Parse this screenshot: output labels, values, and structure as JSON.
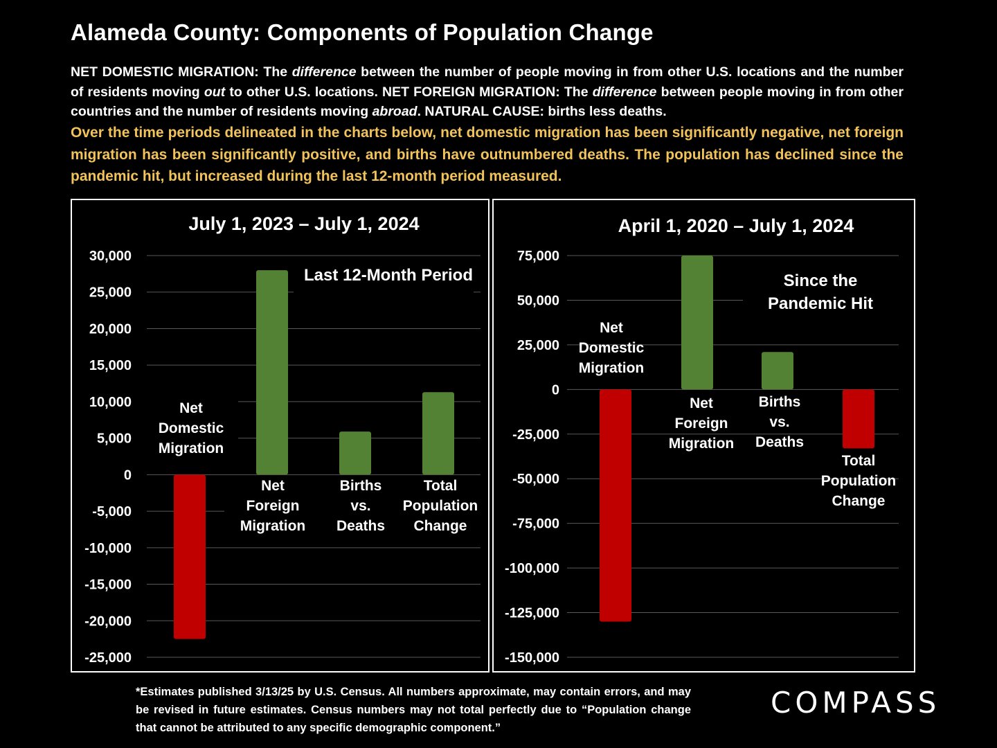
{
  "title": "Alameda County:  Components of Population Change",
  "definitions": [
    {
      "t": "NET DOMESTIC MIGRATION:  The ",
      "i": false
    },
    {
      "t": "difference",
      "i": true
    },
    {
      "t": " between the number of people moving in from other U.S. locations and the number of residents moving ",
      "i": false
    },
    {
      "t": "out",
      "i": true
    },
    {
      "t": " to other U.S. locations. NET FOREIGN MIGRATION:  The ",
      "i": false
    },
    {
      "t": "difference",
      "i": true
    },
    {
      "t": " between people moving in from other countries and the number of residents moving ",
      "i": false
    },
    {
      "t": "abroad",
      "i": true
    },
    {
      "t": ". NATURAL CAUSE:  births less deaths.",
      "i": false
    }
  ],
  "summary": "Over the time periods delineated in the charts below, net domestic migration has been significantly negative, net foreign migration has been significantly positive, and births have outnumbered deaths. The population has declined since the pandemic hit, but increased during the last 12-month period measured.",
  "footnote": "*Estimates published 3/13/25 by U.S. Census. All numbers approximate, may contain errors, and may be revised in future estimates. Census numbers may not total perfectly due to “Population change that cannot be attributed to any specific demographic component.”",
  "logo": "COMPASS",
  "colors": {
    "positive": "#548235",
    "negative": "#c00000",
    "summary_text": "#f2c35a",
    "grid": "#595959"
  },
  "chart_data": [
    {
      "type": "bar",
      "title": "July 1, 2023 – July 1, 2024",
      "annotation": "Last 12-Month Period",
      "categories": [
        "Net Domestic Migration",
        "Net Foreign Migration",
        "Births vs. Deaths",
        "Total Population Change"
      ],
      "category_label_lines": [
        [
          "Net",
          "Domestic",
          "Migration"
        ],
        [
          "Net",
          "Foreign",
          "Migration"
        ],
        [
          "Births",
          "vs.",
          "Deaths"
        ],
        [
          "Total",
          "Population",
          "Change"
        ]
      ],
      "values": [
        -22500,
        28000,
        5900,
        11300
      ],
      "ylim": [
        -25000,
        30000
      ],
      "yticks": [
        30000,
        25000,
        20000,
        15000,
        10000,
        5000,
        0,
        -5000,
        -10000,
        -15000,
        -20000,
        -25000
      ],
      "ytick_labels": [
        "30,000",
        "25,000",
        "20,000",
        "15,000",
        "10,000",
        "5,000",
        "0",
        "-5,000",
        "-10,000",
        "-15,000",
        "-20,000",
        "-25,000"
      ],
      "grid": true
    },
    {
      "type": "bar",
      "title": "April 1, 2020 – July 1, 2024",
      "annotation": [
        "Since the",
        "Pandemic Hit"
      ],
      "categories": [
        "Net Domestic Migration",
        "Net Foreign Migration",
        "Births vs. Deaths",
        "Total Population Change"
      ],
      "category_label_lines": [
        [
          "Net",
          "Domestic",
          "Migration"
        ],
        [
          "Net",
          "Foreign",
          "Migration"
        ],
        [
          "Births",
          "vs.",
          "Deaths"
        ],
        [
          "Total",
          "Population",
          "Change"
        ]
      ],
      "values": [
        -130000,
        75000,
        21000,
        -33000
      ],
      "ylim": [
        -150000,
        75000
      ],
      "yticks": [
        75000,
        50000,
        25000,
        0,
        -25000,
        -50000,
        -75000,
        -100000,
        -125000,
        -150000
      ],
      "ytick_labels": [
        "75,000",
        "50,000",
        "25,000",
        "0",
        "-25,000",
        "-50,000",
        "-75,000",
        "-100,000",
        "-125,000",
        "-150,000"
      ],
      "grid": true
    }
  ]
}
